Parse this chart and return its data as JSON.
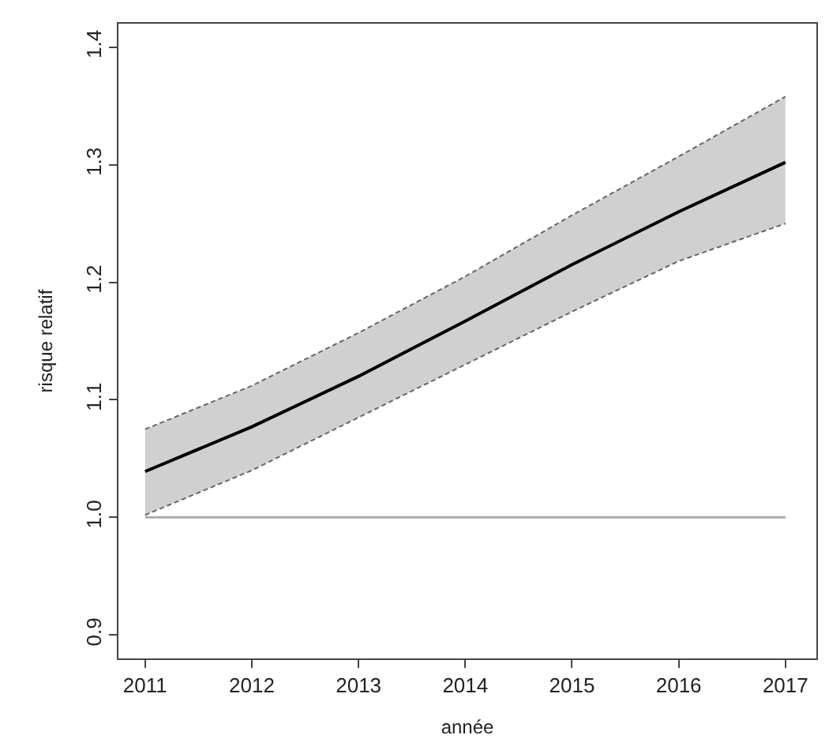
{
  "chart_data": {
    "type": "line",
    "xlabel": "année",
    "ylabel": "risque relatif",
    "x": [
      2011,
      2012,
      2013,
      2014,
      2015,
      2016,
      2017
    ],
    "series": [
      {
        "color": "#666666",
        "line_style": "dashed",
        "values": [
          1.075,
          1.112,
          1.157,
          1.205,
          1.257,
          1.307,
          1.358
        ]
      },
      {
        "color": "#666666",
        "line_style": "dashed",
        "values": [
          1.002,
          1.04,
          1.085,
          1.13,
          1.175,
          1.218,
          1.25
        ]
      },
      {
        "color": "#000000",
        "values": [
          1.039,
          1.077,
          1.12,
          1.167,
          1.215,
          1.26,
          1.302
        ],
        "lower": [
          1.002,
          1.04,
          1.085,
          1.13,
          1.175,
          1.218,
          1.25
        ],
        "upper": [
          1.075,
          1.112,
          1.157,
          1.205,
          1.257,
          1.307,
          1.358
        ]
      }
    ],
    "ref_lines": [
      {
        "axis": "y",
        "value": 1.0,
        "color": "#aaaaaa"
      }
    ],
    "xlim": [
      2010.75,
      2017.29
    ],
    "ylim": [
      0.88,
      1.42
    ],
    "xticks": [
      2011,
      2012,
      2013,
      2014,
      2015,
      2016,
      2017
    ],
    "yticks": [
      0.9,
      {
        "value": 1,
        "label": "1.0"
      },
      1.1,
      1.2,
      1.3,
      1.4
    ],
    "marker": "none",
    "line_style": "solid"
  }
}
